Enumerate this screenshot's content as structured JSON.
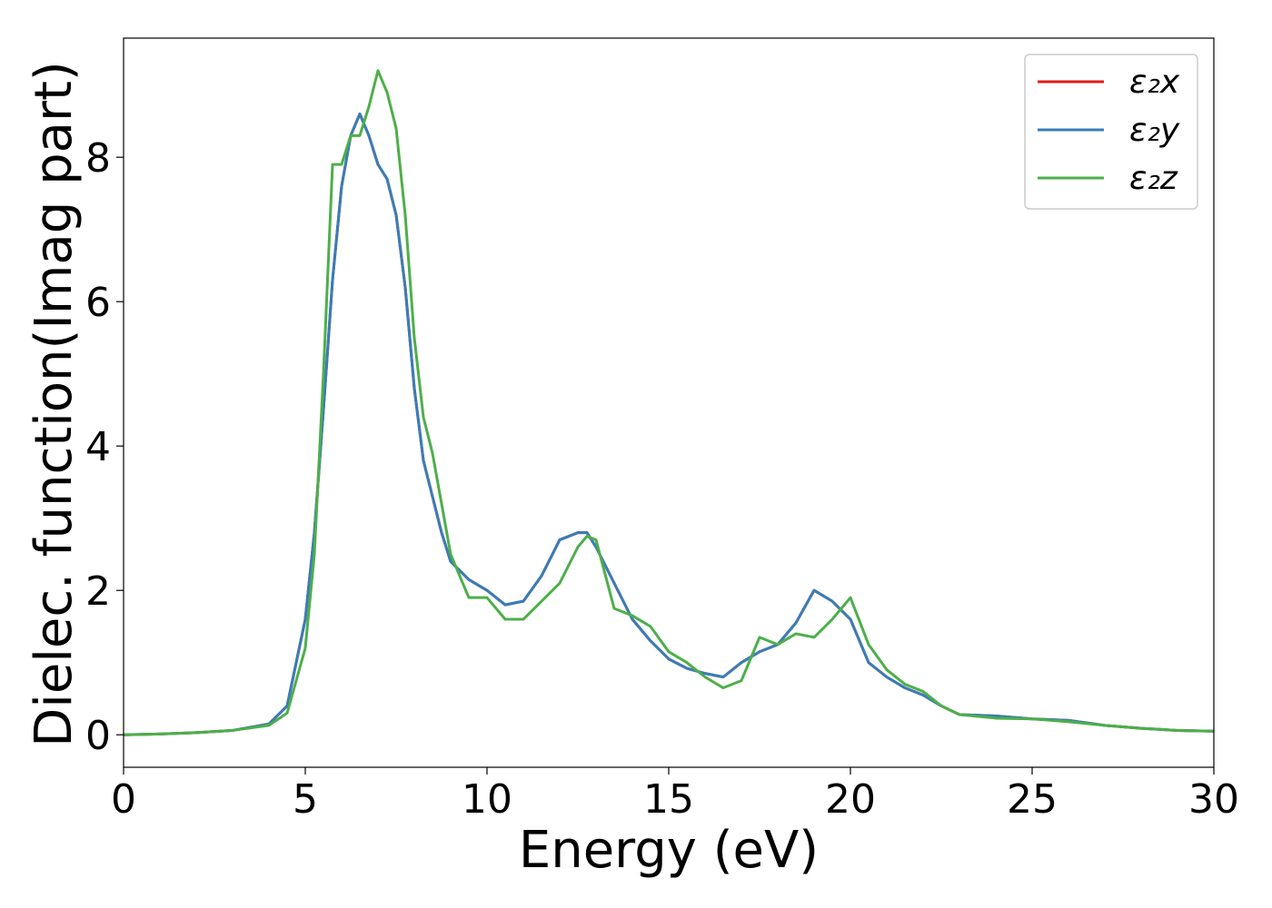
{
  "chart_data": {
    "type": "line",
    "xlabel": "Energy (eV)",
    "ylabel": "Dielec. function(Imag part)",
    "x": [
      0,
      1,
      2,
      3,
      4,
      4.5,
      5,
      5.25,
      5.5,
      5.75,
      6,
      6.25,
      6.5,
      6.75,
      7,
      7.25,
      7.5,
      7.75,
      8,
      8.25,
      8.5,
      8.75,
      9,
      9.5,
      10,
      10.5,
      11,
      11.5,
      12,
      12.5,
      12.75,
      13,
      13.5,
      14,
      14.5,
      15,
      15.5,
      16,
      16.5,
      17,
      17.5,
      18,
      18.5,
      19,
      19.5,
      20,
      20.5,
      21,
      21.5,
      22,
      22.5,
      23,
      24,
      25,
      26,
      27,
      28,
      29,
      30
    ],
    "series": [
      {
        "name": "ε₂x",
        "color": "#e41a1c",
        "values": [
          0,
          0.01,
          0.03,
          0.06,
          0.15,
          0.4,
          1.6,
          2.8,
          4.5,
          6.3,
          7.6,
          8.3,
          8.6,
          8.3,
          7.9,
          7.7,
          7.2,
          6.2,
          4.8,
          3.8,
          3.3,
          2.8,
          2.4,
          2.15,
          2.0,
          1.8,
          1.85,
          2.2,
          2.7,
          2.8,
          2.8,
          2.6,
          2.1,
          1.6,
          1.3,
          1.05,
          0.92,
          0.85,
          0.8,
          1.0,
          1.15,
          1.25,
          1.55,
          2.0,
          1.85,
          1.6,
          1.0,
          0.8,
          0.65,
          0.55,
          0.4,
          0.28,
          0.26,
          0.22,
          0.2,
          0.13,
          0.09,
          0.06,
          0.05
        ]
      },
      {
        "name": "ε₂y",
        "color": "#377eb8",
        "values": [
          0,
          0.01,
          0.03,
          0.06,
          0.15,
          0.4,
          1.6,
          2.8,
          4.5,
          6.3,
          7.6,
          8.3,
          8.6,
          8.3,
          7.9,
          7.7,
          7.2,
          6.2,
          4.8,
          3.8,
          3.3,
          2.8,
          2.4,
          2.15,
          2.0,
          1.8,
          1.85,
          2.2,
          2.7,
          2.8,
          2.8,
          2.6,
          2.1,
          1.6,
          1.3,
          1.05,
          0.92,
          0.85,
          0.8,
          1.0,
          1.15,
          1.25,
          1.55,
          2.0,
          1.85,
          1.6,
          1.0,
          0.8,
          0.65,
          0.55,
          0.4,
          0.28,
          0.26,
          0.22,
          0.2,
          0.13,
          0.09,
          0.06,
          0.05
        ]
      },
      {
        "name": "ε₂z",
        "color": "#4daf4a",
        "values": [
          0,
          0.01,
          0.03,
          0.06,
          0.13,
          0.3,
          1.2,
          2.5,
          5.0,
          7.9,
          7.9,
          8.3,
          8.3,
          8.7,
          9.2,
          8.9,
          8.4,
          7.2,
          5.5,
          4.4,
          3.9,
          3.2,
          2.5,
          1.9,
          1.9,
          1.6,
          1.6,
          1.85,
          2.1,
          2.6,
          2.75,
          2.7,
          1.75,
          1.65,
          1.5,
          1.15,
          1.0,
          0.8,
          0.65,
          0.75,
          1.35,
          1.25,
          1.4,
          1.35,
          1.6,
          1.9,
          1.25,
          0.9,
          0.7,
          0.6,
          0.4,
          0.28,
          0.23,
          0.22,
          0.18,
          0.13,
          0.09,
          0.06,
          0.05
        ]
      }
    ],
    "xlim": [
      0,
      30
    ],
    "xticks": [
      0,
      5,
      10,
      15,
      20,
      25,
      30
    ],
    "ylim": [
      -0.45,
      9.65
    ],
    "yticks": [
      0,
      2,
      4,
      6,
      8
    ],
    "legend": "upper right"
  }
}
